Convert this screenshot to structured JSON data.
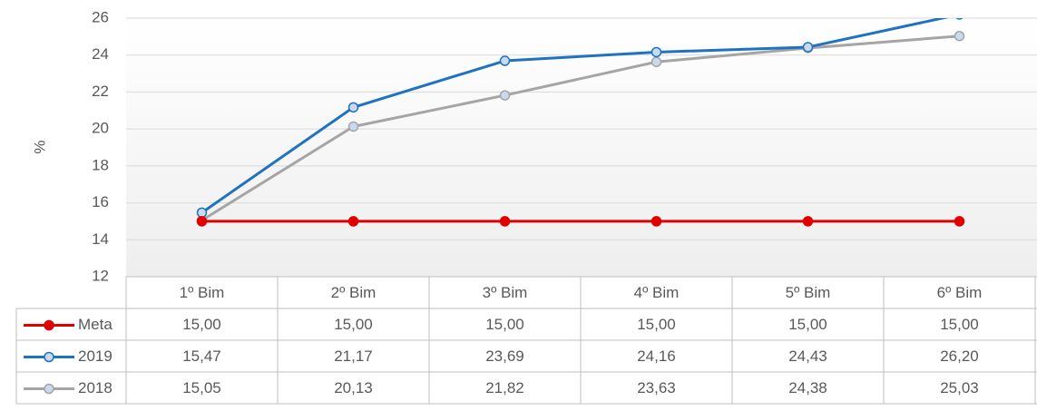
{
  "chart_data": {
    "type": "line",
    "y_label": "%",
    "categories": [
      "1º Bim",
      "2º Bim",
      "3º Bim",
      "4º Bim",
      "5º Bim",
      "6º Bim"
    ],
    "series": [
      {
        "name": "Meta",
        "color": "#e00000",
        "values": [
          15,
          15,
          15,
          15,
          15,
          15
        ],
        "value_labels": [
          "15,00",
          "15,00",
          "15,00",
          "15,00",
          "15,00",
          "15,00"
        ]
      },
      {
        "name": "2019",
        "color": "#1f72c0",
        "values": [
          15.47,
          21.17,
          23.69,
          24.16,
          24.43,
          26.2
        ],
        "value_labels": [
          "15,47",
          "21,17",
          "23,69",
          "24,16",
          "24,43",
          "26,20"
        ]
      },
      {
        "name": "2018",
        "color": "#a5a5a5",
        "values": [
          15.05,
          20.13,
          21.82,
          23.63,
          24.38,
          25.03
        ],
        "value_labels": [
          "15,05",
          "20,13",
          "21,82",
          "23,63",
          "24,38",
          "25,03"
        ]
      }
    ],
    "ylim": [
      12,
      26
    ],
    "yticks": [
      12,
      14,
      16,
      18,
      20,
      22,
      24,
      26
    ],
    "grid": true,
    "data_table": true
  }
}
